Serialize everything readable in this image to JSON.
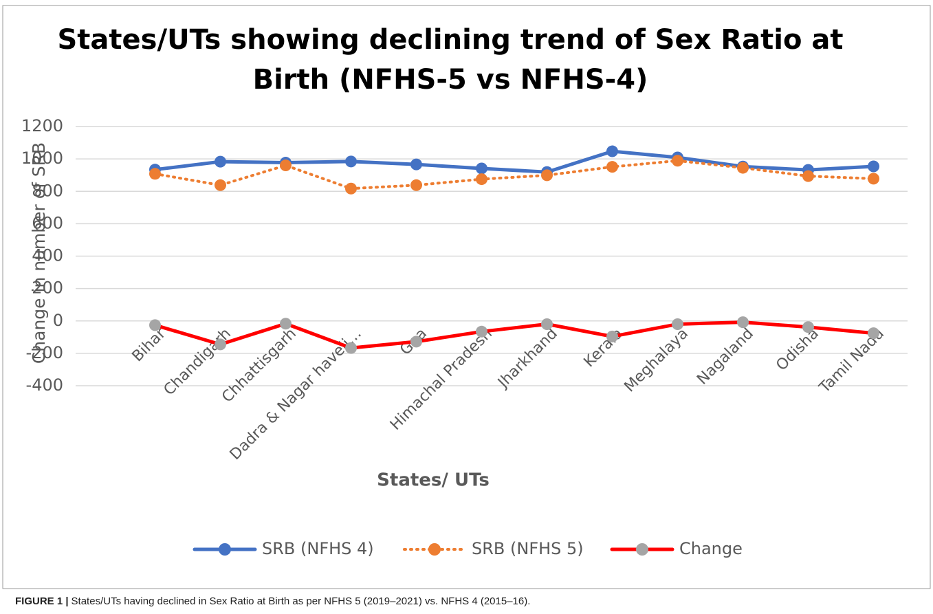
{
  "chart_data": {
    "type": "line",
    "title": "States/UTs showing declining trend of Sex Ratio at",
    "title_line2": "Birth (NFHS-5 vs NFHS-4)",
    "x_label": "States/ UTs",
    "y_label": "Change in number of SRB",
    "categories": [
      "Bihar",
      "Chandigarh",
      "Chhattisgarh",
      "Dadra & Nagar haveli…",
      "Goa",
      "Himachal Pradesh",
      "Jharkhand",
      "Kerala",
      "Meghalaya",
      "Nagaland",
      "Odisha",
      "Tamil Nadu"
    ],
    "series": [
      {
        "name": "SRB (NFHS 4)",
        "color": "#4472c4",
        "marker_color": "#4472c4",
        "dashed": false,
        "values": [
          934,
          983,
          977,
          984,
          966,
          941,
          919,
          1047,
          1009,
          953,
          932,
          954
        ]
      },
      {
        "name": "SRB (NFHS 5)",
        "color": "#ed7d31",
        "marker_color": "#ed7d31",
        "dashed": true,
        "values": [
          908,
          838,
          960,
          817,
          838,
          875,
          899,
          951,
          989,
          945,
          894,
          878
        ]
      },
      {
        "name": "Change",
        "color": "#ff0000",
        "marker_color": "#a5a5a5",
        "dashed": false,
        "values": [
          -26,
          -145,
          -17,
          -167,
          -128,
          -66,
          -20,
          -96,
          -20,
          -8,
          -38,
          -76
        ]
      }
    ],
    "ylim": [
      -400,
      1200
    ],
    "yticks": [
      -400,
      -200,
      0,
      200,
      400,
      600,
      800,
      1000,
      1200
    ],
    "grid": true,
    "legend": "bottom"
  },
  "caption": {
    "label": "FIGURE 1 |",
    "text": "States/UTs having declined in Sex Ratio at Birth as per NFHS 5 (2019–2021) vs. NFHS 4 (2015–16)."
  }
}
